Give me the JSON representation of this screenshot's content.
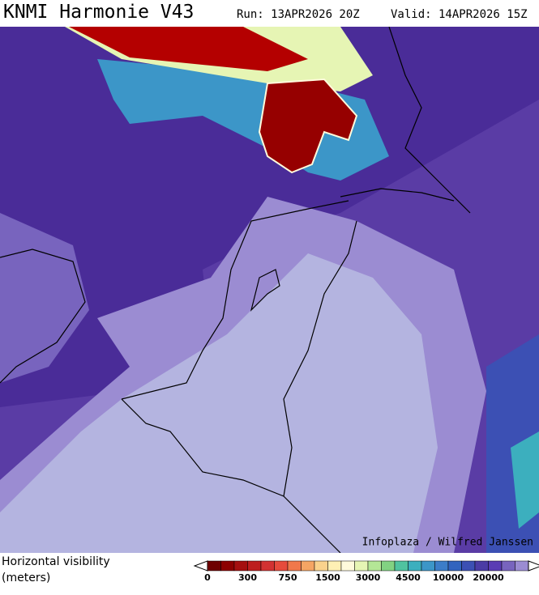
{
  "header": {
    "title": "KNMI Harmonie V43",
    "run": "Run: 13APR2026 20Z",
    "valid": "Valid: 14APR2026 15Z"
  },
  "credit": "Infoplaza / Wilfred Janssen",
  "legend": {
    "label_line1": "Horizontal visibility",
    "label_line2": "(meters)",
    "ticks": [
      0,
      300,
      750,
      1500,
      3000,
      4500,
      10000,
      20000
    ],
    "colors": [
      "#6e0000",
      "#8c0000",
      "#a50f0f",
      "#bd1e1e",
      "#d23232",
      "#e64b3c",
      "#f0784b",
      "#f5a564",
      "#fad28c",
      "#fff0b4",
      "#fffadc",
      "#e6f5b4",
      "#b4e696",
      "#82d282",
      "#50c3a0",
      "#3cafbe",
      "#3c96c8",
      "#3c7dc8",
      "#3264be",
      "#3c50b4",
      "#4b3ca5",
      "#5a3cb4",
      "#7864be",
      "#9b8cd2"
    ]
  }
}
